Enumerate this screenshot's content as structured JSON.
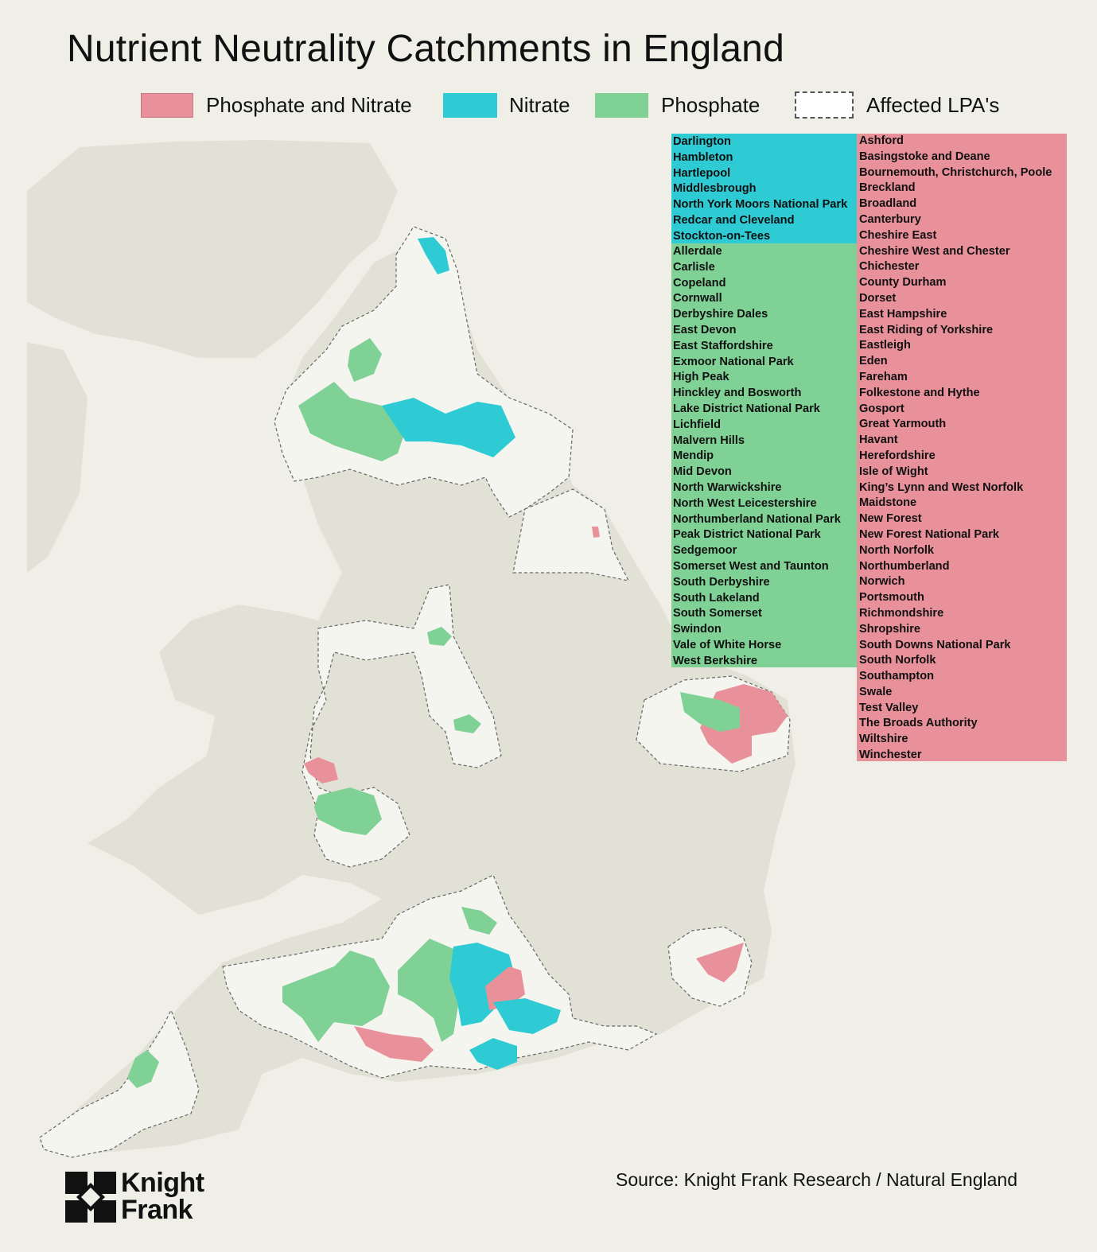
{
  "title": "Nutrient Neutrality Catchments in England",
  "legend": [
    {
      "label": "Phosphate and Nitrate",
      "color": "#e8919b",
      "style": "solid"
    },
    {
      "label": "Nitrate",
      "color": "#2ecbd4",
      "style": "solid"
    },
    {
      "label": "Phosphate",
      "color": "#80d195",
      "style": "solid"
    },
    {
      "label": "Affected LPA's",
      "color": "#ffffff",
      "style": "dashed"
    }
  ],
  "nitrate_lpas": [
    "Darlington",
    "Hambleton",
    "Hartlepool",
    "Middlesbrough",
    "North York Moors National Park",
    "Redcar and Cleveland",
    "Stockton-on-Tees"
  ],
  "phosphate_lpas": [
    "Allerdale",
    "Carlisle",
    "Copeland",
    "Cornwall",
    "Derbyshire Dales",
    "East Devon",
    "East Staffordshire",
    "Exmoor National Park",
    "High Peak",
    "Hinckley and Bosworth",
    "Lake District National Park",
    "Lichfield",
    "Malvern Hills",
    "Mendip",
    "Mid Devon",
    "North Warwickshire",
    "North West Leicestershire",
    "Northumberland National Park",
    "Peak District National Park",
    "Sedgemoor",
    "Somerset West and Taunton",
    "South Derbyshire",
    "South Lakeland",
    "South Somerset",
    "Swindon",
    "Vale of White Horse",
    "West Berkshire"
  ],
  "phosphate_nitrate_lpas": [
    "Ashford",
    "Basingstoke and Deane",
    "Bournemouth, Christchurch, Poole",
    "Breckland",
    "Broadland",
    "Canterbury",
    "Cheshire East",
    "Cheshire West and Chester",
    "Chichester",
    "County Durham",
    "Dorset",
    "East Hampshire",
    "East Riding of Yorkshire",
    "Eastleigh",
    "Eden",
    "Fareham",
    "Folkestone and Hythe",
    "Gosport",
    "Great Yarmouth",
    "Havant",
    "Herefordshire",
    "Isle of Wight",
    "King’s Lynn and West Norfolk",
    "Maidstone",
    "New Forest",
    "New Forest National Park",
    "North Norfolk",
    "Northumberland",
    "Norwich",
    "Portsmouth",
    "Richmondshire",
    "Shropshire",
    "South Downs National Park",
    "South Norfolk",
    "Southampton",
    "Swale",
    "Test Valley",
    "The Broads Authority",
    "Wiltshire",
    "Winchester"
  ],
  "source": "Source: Knight Frank Research / Natural England",
  "logo": {
    "line1": "Knight",
    "line2": "Frank"
  },
  "colors": {
    "background": "#f0efe7",
    "land": "#e2e1d6",
    "lpa": "#f5f5f0",
    "pink": "#e8919b",
    "cyan": "#2ecbd4",
    "green": "#80d195"
  }
}
